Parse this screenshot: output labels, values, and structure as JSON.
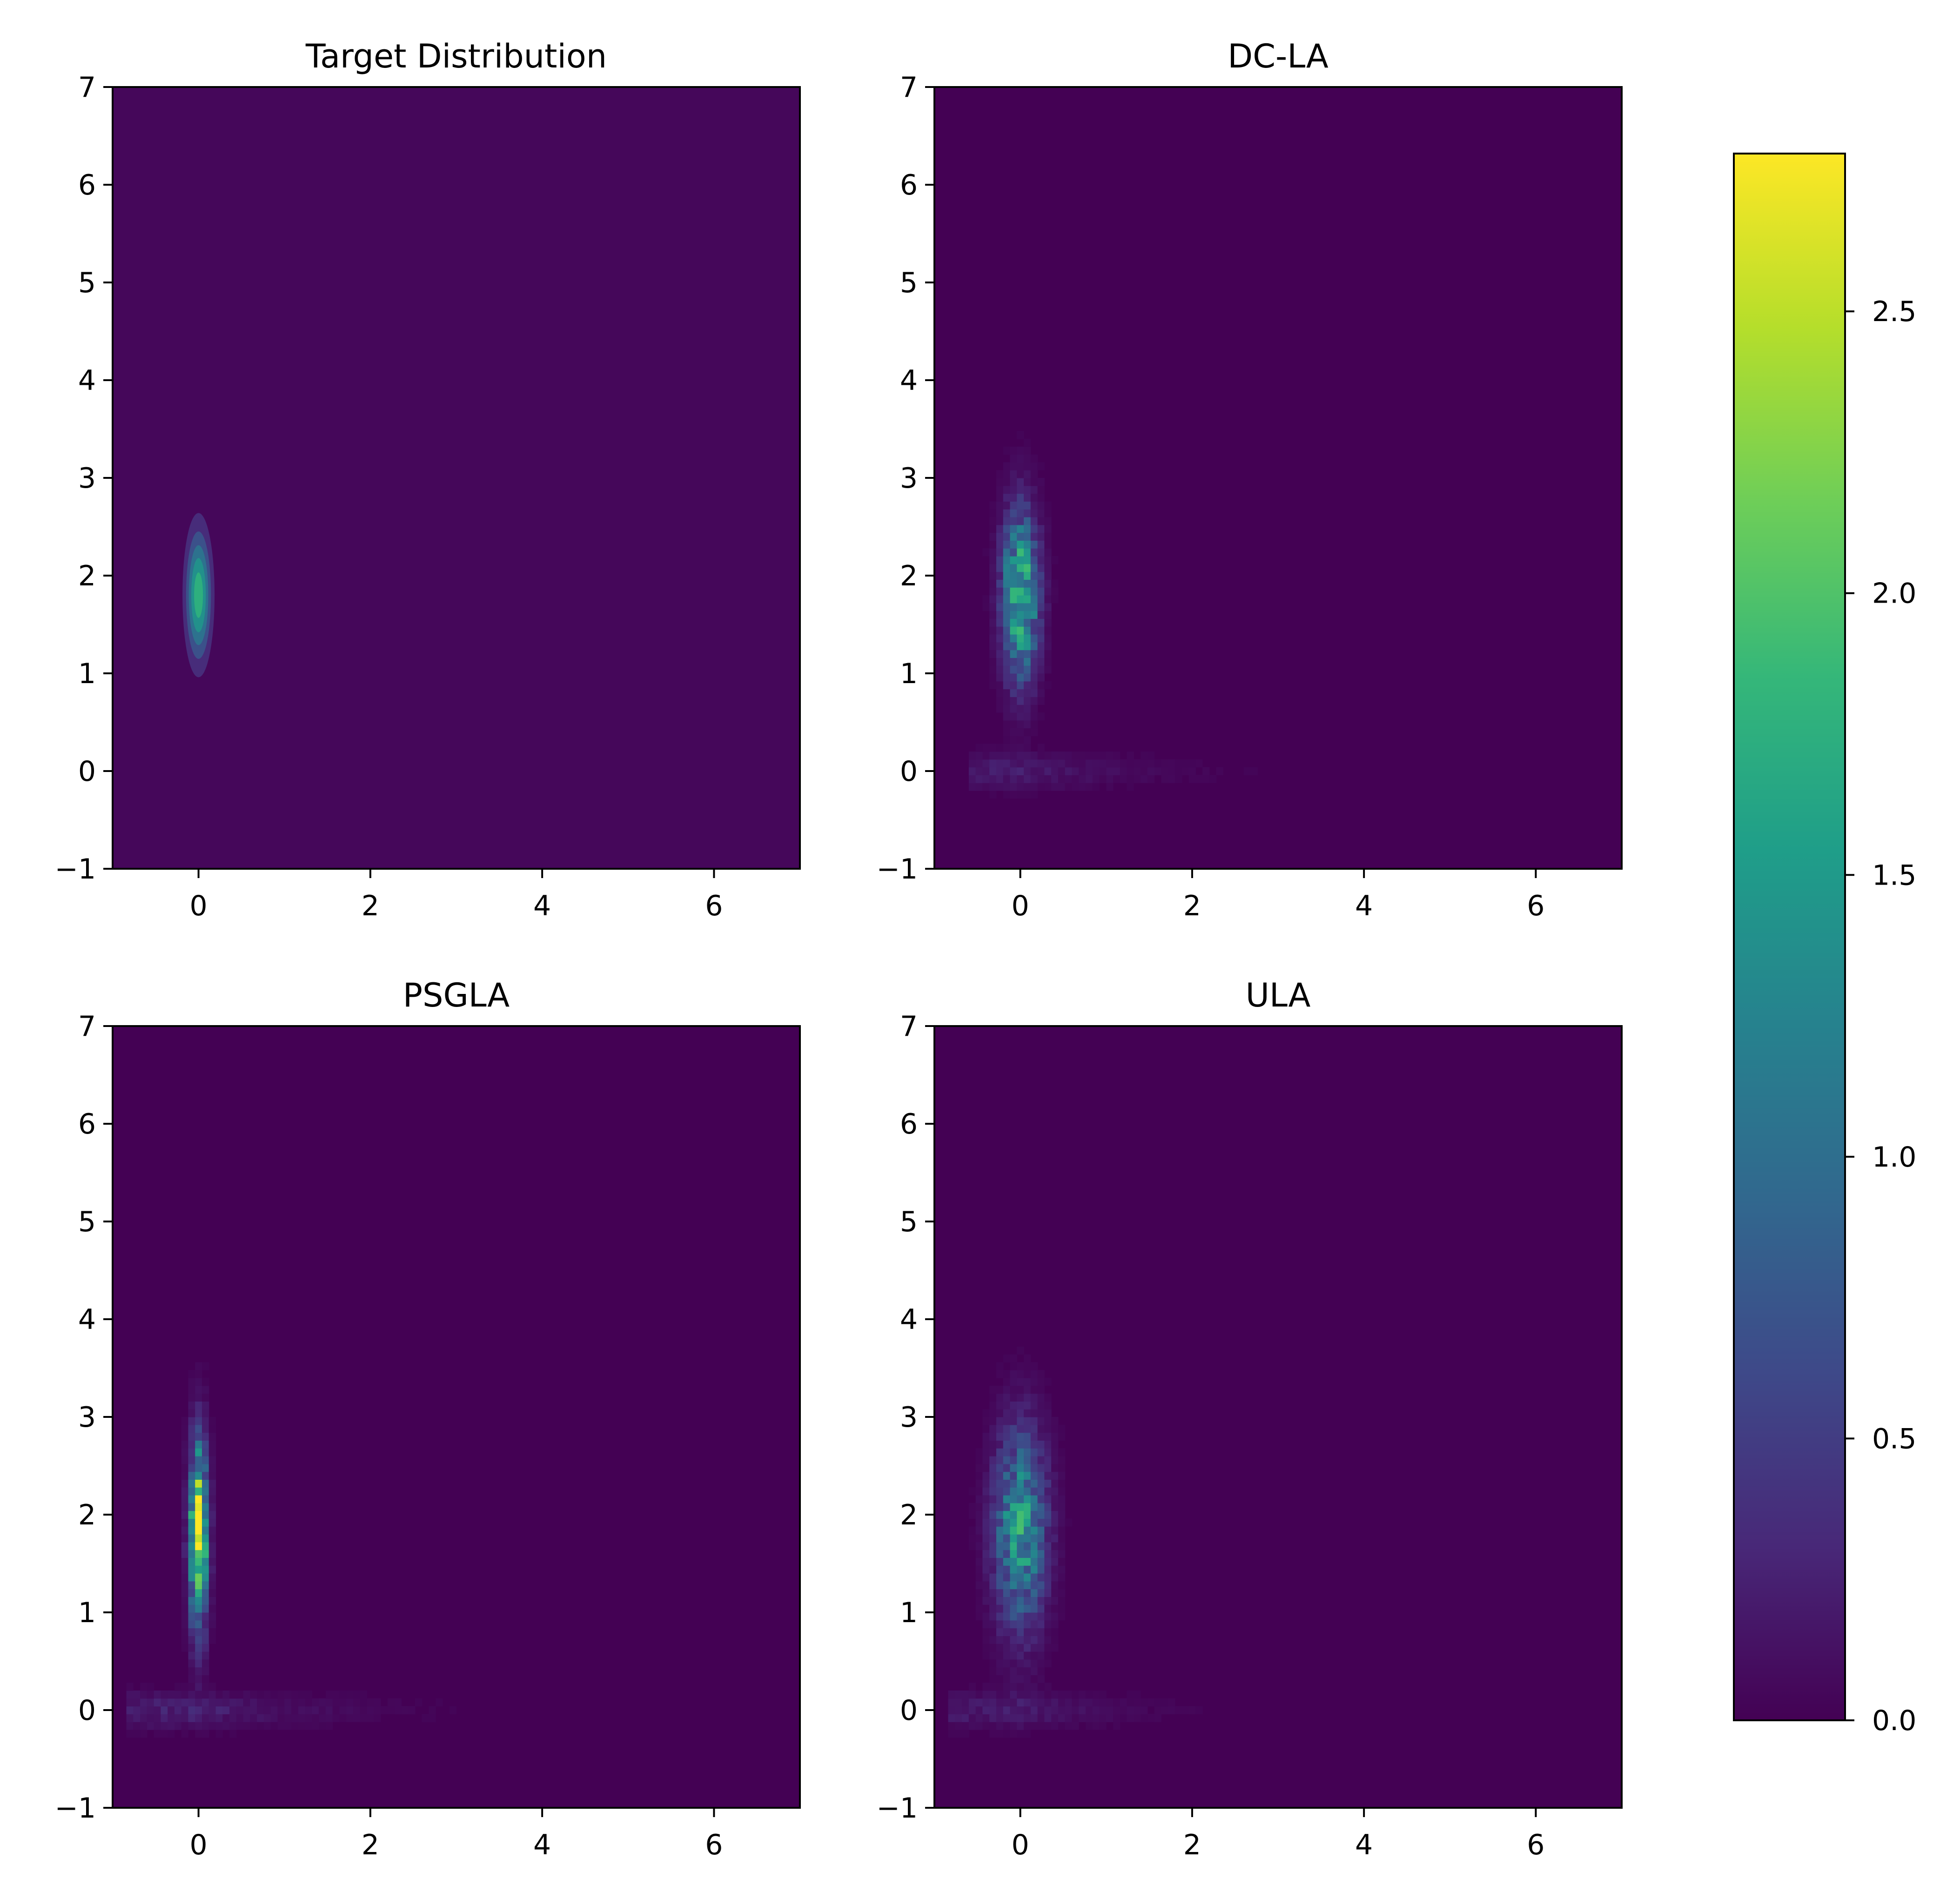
{
  "chart_data": {
    "type": "heatmap",
    "layout": "2x2 grid of density panels with a shared colorbar on the right",
    "colormap": "viridis",
    "viridis_stops": [
      "#440154",
      "#482878",
      "#3e4989",
      "#31688e",
      "#26828e",
      "#1f9e89",
      "#35b779",
      "#6ece58",
      "#b5de2b",
      "#fde725"
    ],
    "panels": [
      {
        "id": "target",
        "title": "Target Distribution",
        "kind": "contour",
        "xlim": [
          -1,
          7
        ],
        "ylim": [
          -1,
          7
        ],
        "xticks": [
          0,
          2,
          4,
          6
        ],
        "yticks": [
          -1,
          0,
          1,
          2,
          3,
          4,
          5,
          6,
          7
        ],
        "background_value": 0.05,
        "peak": {
          "x": 0.0,
          "y": 1.8,
          "sigma_x": 0.1,
          "sigma_y": 0.45,
          "value": 2.0
        },
        "contour_levels": [
          0.05,
          0.35,
          0.7,
          1.05,
          1.4,
          1.75,
          2.0
        ]
      },
      {
        "id": "dcla",
        "title": "DC-LA",
        "kind": "hist2d",
        "xlim": [
          -1,
          7
        ],
        "ylim": [
          -1,
          7
        ],
        "xticks": [
          0,
          2,
          4,
          6
        ],
        "yticks": [
          -1,
          0,
          1,
          2,
          3,
          4,
          5,
          6,
          7
        ],
        "peak": {
          "x": 0.0,
          "y": 1.8,
          "sigma_x": 0.14,
          "sigma_y": 0.55,
          "value": 1.85
        },
        "tail": {
          "y": 0.0,
          "x_from": -0.6,
          "x_to": 3.0,
          "value": 0.22,
          "decay": 1.2
        }
      },
      {
        "id": "psgla",
        "title": "PSGLA",
        "kind": "hist2d",
        "xlim": [
          -1,
          7
        ],
        "ylim": [
          -1,
          7
        ],
        "xticks": [
          0,
          2,
          4,
          6
        ],
        "yticks": [
          -1,
          0,
          1,
          2,
          3,
          4,
          5,
          6,
          7
        ],
        "peak": {
          "x": 0.0,
          "y": 1.8,
          "sigma_x": 0.07,
          "sigma_y": 0.6,
          "value": 2.75
        },
        "tail": {
          "y": 0.0,
          "x_from": -0.8,
          "x_to": 3.2,
          "value": 0.25,
          "decay": 1.3
        }
      },
      {
        "id": "ula",
        "title": "ULA",
        "kind": "hist2d",
        "xlim": [
          -1,
          7
        ],
        "ylim": [
          -1,
          7
        ],
        "xticks": [
          0,
          2,
          4,
          6
        ],
        "yticks": [
          -1,
          0,
          1,
          2,
          3,
          4,
          5,
          6,
          7
        ],
        "peak": {
          "x": 0.0,
          "y": 1.85,
          "sigma_x": 0.2,
          "sigma_y": 0.65,
          "value": 1.45
        },
        "tail": {
          "y": 0.0,
          "x_from": -0.8,
          "x_to": 3.0,
          "value": 0.2,
          "decay": 1.1
        }
      }
    ],
    "colorbar": {
      "vmin": 0.0,
      "vmax": 2.78,
      "ticks": [
        0.0,
        0.5,
        1.0,
        1.5,
        2.0,
        2.5
      ],
      "tick_labels": [
        "0.0",
        "0.5",
        "1.0",
        "1.5",
        "2.0",
        "2.5"
      ]
    }
  }
}
